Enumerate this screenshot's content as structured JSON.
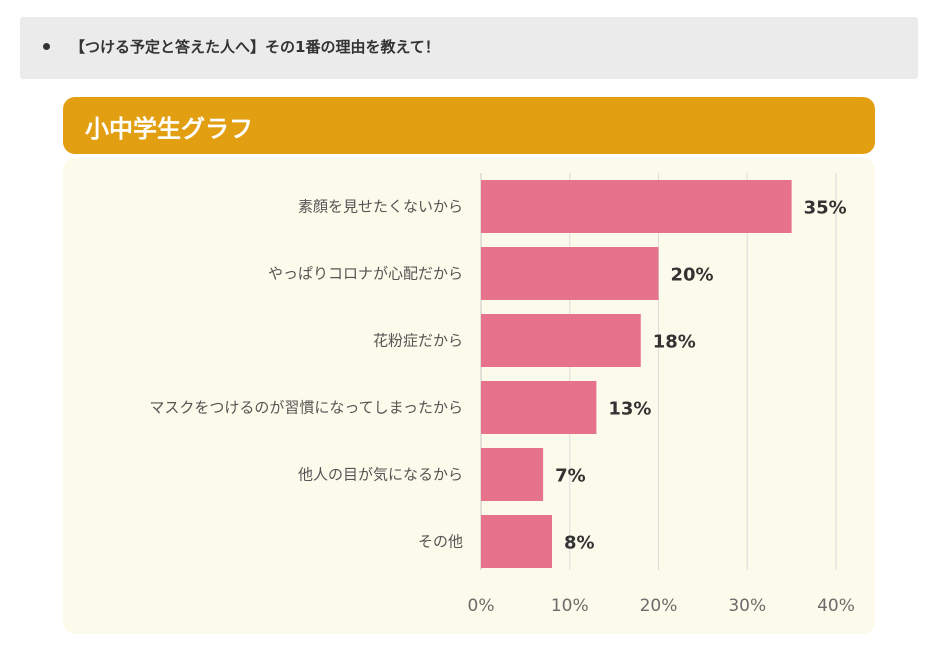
{
  "question": {
    "text": "【つける予定と答えた人へ】その1番の理由を教えて！"
  },
  "chart_header": {
    "title": "小中学生グラフ"
  },
  "colors": {
    "header": "#e29f12",
    "panel": "#fcfaea",
    "bar": "#e6738b",
    "grid": "#dcdcdc"
  },
  "chart_data": {
    "type": "bar",
    "orientation": "horizontal",
    "title": "小中学生グラフ",
    "categories": [
      "素顔を見せたくないから",
      "やっぱりコロナが心配だから",
      "花粉症だから",
      "マスクをつけるのが習慣になってしまったから",
      "他人の目が気になるから",
      "その他"
    ],
    "values": [
      35,
      20,
      18,
      13,
      7,
      8
    ],
    "value_labels": [
      "35%",
      "20%",
      "18%",
      "13%",
      "7%",
      "8%"
    ],
    "xlim": [
      0,
      40
    ],
    "xticks": [
      0,
      10,
      20,
      30,
      40
    ],
    "xtick_labels": [
      "0%",
      "10%",
      "20%",
      "30%",
      "40%"
    ],
    "xlabel": "",
    "ylabel": "",
    "grid": true
  }
}
